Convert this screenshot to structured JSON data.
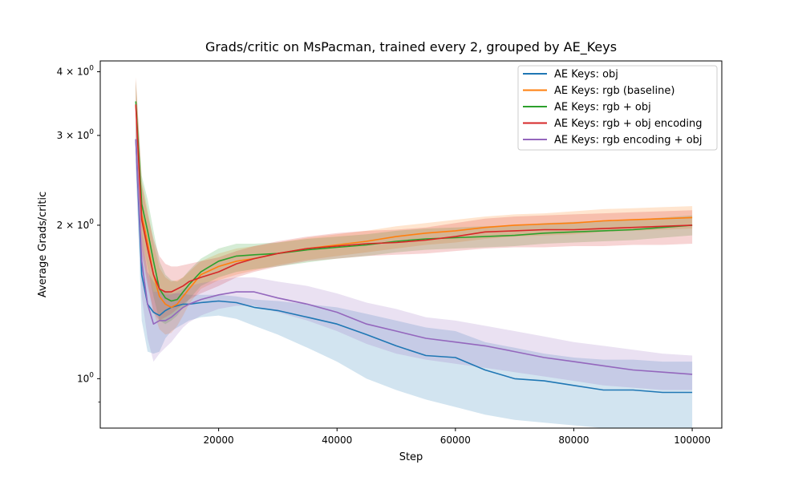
{
  "chart_data": {
    "type": "line",
    "title": "Grads/critic on MsPacman, trained every 2, grouped by AE_Keys",
    "xlabel": "Step",
    "ylabel": "Average Grads/critic",
    "xlim": [
      0,
      105000
    ],
    "ylim": [
      0.8,
      4.2
    ],
    "yscale": "log",
    "grid": false,
    "legend_position": "top-right",
    "x_ticks": [
      {
        "value": 20000,
        "label": "20000"
      },
      {
        "value": 40000,
        "label": "40000"
      },
      {
        "value": 60000,
        "label": "60000"
      },
      {
        "value": 80000,
        "label": "80000"
      },
      {
        "value": 100000,
        "label": "100000"
      }
    ],
    "y_ticks": [
      {
        "value": 1,
        "base": "10",
        "exp": "0",
        "coef": ""
      },
      {
        "value": 2,
        "base": "10",
        "exp": "0",
        "coef": "2 × "
      },
      {
        "value": 3,
        "base": "10",
        "exp": "0",
        "coef": "3 × "
      },
      {
        "value": 4,
        "base": "10",
        "exp": "0",
        "coef": "4 × "
      }
    ],
    "y_minor_ticks": [
      0.9
    ],
    "x": [
      6000,
      7000,
      8000,
      9000,
      10000,
      11000,
      12000,
      13000,
      14000,
      15000,
      17000,
      20000,
      23000,
      26000,
      30000,
      35000,
      40000,
      45000,
      50000,
      55000,
      60000,
      65000,
      70000,
      75000,
      80000,
      85000,
      90000,
      95000,
      100000
    ],
    "series": [
      {
        "name": "AE Keys: obj",
        "color": "#1f77b4",
        "values": [
          2.95,
          1.6,
          1.4,
          1.35,
          1.33,
          1.36,
          1.38,
          1.39,
          1.4,
          1.4,
          1.41,
          1.42,
          1.41,
          1.38,
          1.36,
          1.32,
          1.28,
          1.22,
          1.16,
          1.11,
          1.1,
          1.04,
          1.0,
          0.99,
          0.97,
          0.95,
          0.95,
          0.94,
          0.94
        ],
        "lower": [
          2.6,
          1.3,
          1.13,
          1.12,
          1.13,
          1.2,
          1.24,
          1.26,
          1.28,
          1.3,
          1.32,
          1.33,
          1.31,
          1.27,
          1.22,
          1.15,
          1.08,
          1.0,
          0.95,
          0.91,
          0.88,
          0.85,
          0.83,
          0.82,
          0.81,
          0.8,
          0.8,
          0.8,
          0.8
        ],
        "upper": [
          3.2,
          1.9,
          1.62,
          1.55,
          1.5,
          1.48,
          1.47,
          1.47,
          1.47,
          1.46,
          1.46,
          1.46,
          1.45,
          1.43,
          1.42,
          1.4,
          1.38,
          1.34,
          1.3,
          1.26,
          1.24,
          1.18,
          1.15,
          1.12,
          1.1,
          1.09,
          1.09,
          1.08,
          1.08
        ]
      },
      {
        "name": "AE Keys: rgb (baseline)",
        "color": "#ff7f0e",
        "values": [
          3.45,
          2.1,
          1.85,
          1.6,
          1.45,
          1.4,
          1.38,
          1.4,
          1.45,
          1.5,
          1.6,
          1.66,
          1.7,
          1.72,
          1.76,
          1.8,
          1.83,
          1.86,
          1.9,
          1.93,
          1.95,
          1.98,
          2.0,
          2.01,
          2.02,
          2.04,
          2.05,
          2.06,
          2.07
        ],
        "lower": [
          3.0,
          1.8,
          1.55,
          1.35,
          1.25,
          1.22,
          1.23,
          1.27,
          1.33,
          1.4,
          1.5,
          1.56,
          1.6,
          1.63,
          1.67,
          1.71,
          1.74,
          1.77,
          1.8,
          1.83,
          1.85,
          1.88,
          1.9,
          1.91,
          1.92,
          1.94,
          1.95,
          1.96,
          1.97
        ],
        "upper": [
          3.9,
          2.45,
          2.15,
          1.85,
          1.65,
          1.58,
          1.55,
          1.56,
          1.58,
          1.62,
          1.7,
          1.76,
          1.8,
          1.82,
          1.85,
          1.89,
          1.92,
          1.95,
          1.99,
          2.02,
          2.05,
          2.08,
          2.1,
          2.11,
          2.13,
          2.15,
          2.16,
          2.17,
          2.18
        ]
      },
      {
        "name": "AE Keys: rgb + obj",
        "color": "#2ca02c",
        "values": [
          3.5,
          2.2,
          1.95,
          1.7,
          1.5,
          1.44,
          1.42,
          1.43,
          1.48,
          1.53,
          1.62,
          1.7,
          1.74,
          1.75,
          1.76,
          1.79,
          1.81,
          1.83,
          1.86,
          1.88,
          1.89,
          1.9,
          1.91,
          1.93,
          1.94,
          1.95,
          1.96,
          1.98,
          2.0
        ],
        "lower": [
          3.1,
          1.9,
          1.65,
          1.45,
          1.3,
          1.28,
          1.3,
          1.33,
          1.38,
          1.43,
          1.52,
          1.58,
          1.62,
          1.64,
          1.66,
          1.69,
          1.72,
          1.74,
          1.77,
          1.79,
          1.8,
          1.81,
          1.82,
          1.84,
          1.85,
          1.86,
          1.87,
          1.89,
          1.91
        ],
        "upper": [
          3.85,
          2.5,
          2.25,
          1.95,
          1.7,
          1.6,
          1.56,
          1.55,
          1.58,
          1.63,
          1.72,
          1.8,
          1.84,
          1.84,
          1.85,
          1.88,
          1.9,
          1.92,
          1.95,
          1.97,
          1.98,
          1.99,
          2.0,
          2.02,
          2.03,
          2.04,
          2.05,
          2.07,
          2.09
        ]
      },
      {
        "name": "AE Keys: rgb + obj encoding",
        "color": "#d62728",
        "values": [
          3.45,
          2.05,
          1.8,
          1.6,
          1.5,
          1.48,
          1.48,
          1.5,
          1.52,
          1.55,
          1.58,
          1.62,
          1.68,
          1.72,
          1.76,
          1.8,
          1.82,
          1.84,
          1.85,
          1.87,
          1.9,
          1.94,
          1.95,
          1.96,
          1.96,
          1.97,
          1.98,
          1.99,
          2.0
        ],
        "lower": [
          3.0,
          1.75,
          1.52,
          1.35,
          1.3,
          1.32,
          1.34,
          1.37,
          1.4,
          1.43,
          1.47,
          1.52,
          1.58,
          1.62,
          1.66,
          1.7,
          1.72,
          1.74,
          1.75,
          1.76,
          1.78,
          1.8,
          1.81,
          1.81,
          1.82,
          1.82,
          1.83,
          1.83,
          1.84
        ],
        "upper": [
          3.9,
          2.4,
          2.1,
          1.88,
          1.74,
          1.68,
          1.66,
          1.66,
          1.67,
          1.68,
          1.7,
          1.73,
          1.78,
          1.82,
          1.86,
          1.9,
          1.93,
          1.95,
          1.96,
          1.98,
          2.02,
          2.06,
          2.08,
          2.09,
          2.1,
          2.11,
          2.12,
          2.13,
          2.14
        ]
      },
      {
        "name": "AE Keys: rgb encoding + obj",
        "color": "#9467bd",
        "values": [
          2.95,
          1.7,
          1.4,
          1.28,
          1.3,
          1.3,
          1.32,
          1.35,
          1.38,
          1.4,
          1.43,
          1.46,
          1.48,
          1.48,
          1.44,
          1.4,
          1.35,
          1.28,
          1.24,
          1.2,
          1.18,
          1.16,
          1.13,
          1.1,
          1.08,
          1.06,
          1.04,
          1.03,
          1.02
        ],
        "lower": [
          2.6,
          1.45,
          1.2,
          1.08,
          1.12,
          1.15,
          1.18,
          1.22,
          1.26,
          1.29,
          1.33,
          1.37,
          1.39,
          1.39,
          1.35,
          1.3,
          1.24,
          1.17,
          1.12,
          1.09,
          1.07,
          1.05,
          1.03,
          1.01,
          0.99,
          0.97,
          0.96,
          0.95,
          0.95
        ],
        "upper": [
          3.25,
          1.95,
          1.62,
          1.48,
          1.48,
          1.46,
          1.46,
          1.48,
          1.5,
          1.52,
          1.54,
          1.56,
          1.58,
          1.58,
          1.55,
          1.52,
          1.47,
          1.41,
          1.37,
          1.32,
          1.3,
          1.27,
          1.24,
          1.21,
          1.18,
          1.16,
          1.14,
          1.12,
          1.11
        ]
      }
    ]
  }
}
